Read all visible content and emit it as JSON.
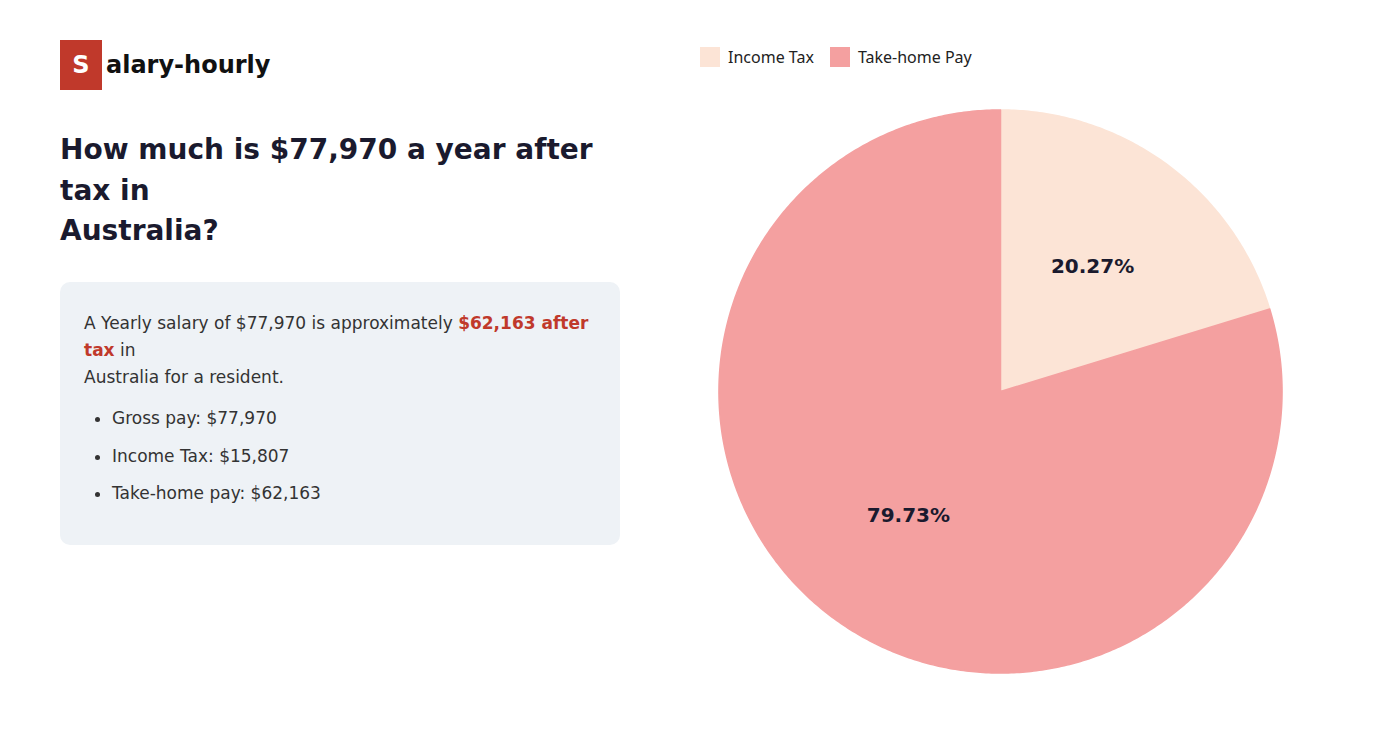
{
  "chart_data": {
    "type": "pie",
    "title": "How much is $77,970 a year after tax in\nAustralia?",
    "categories": [
      "Income Tax",
      "Take-home Pay"
    ],
    "values": [
      20.27,
      79.73
    ],
    "value_labels": [
      "20.27%",
      "79.73%"
    ],
    "colors": [
      "#fce4d6",
      "#f4a0a0"
    ],
    "data_labels": true,
    "legend": "upper left",
    "annotations": [
      {
        "text": "S",
        "color": "#c0392b"
      },
      {
        "text": "alary-hourly"
      },
      {
        "text": "A Yearly salary of $77,970 is approximately "
      },
      {
        "text": "$62,163 after tax",
        "color": "#c0392b"
      },
      {
        "text": " in"
      },
      {
        "text": "Australia for a resident."
      },
      {
        "text": "Gross pay: $77,970"
      },
      {
        "text": "Income Tax: $15,807"
      },
      {
        "text": "Take-home pay: $62,163"
      }
    ]
  }
}
